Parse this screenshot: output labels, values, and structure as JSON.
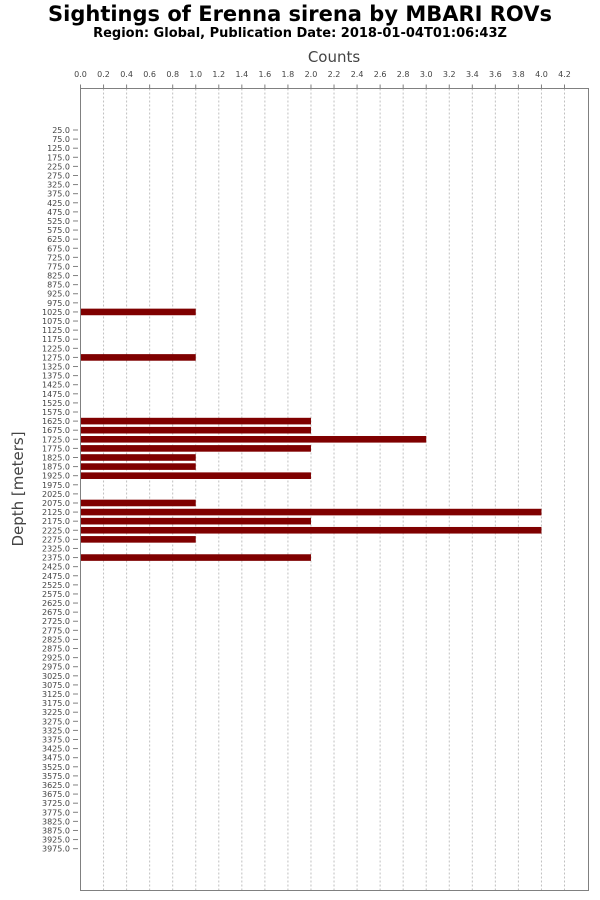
{
  "chart_data": {
    "type": "bar",
    "orientation": "horizontal",
    "title": "Sightings of Erenna sirena by MBARI ROVs",
    "subtitle": "Region: Global, Publication Date: 2018-01-04T01:06:43Z",
    "xlabel": "Counts",
    "ylabel": "Depth [meters]",
    "xlim": [
      0,
      4.2
    ],
    "x_ticks": [
      "0.0",
      "0.2",
      "0.4",
      "0.6",
      "0.8",
      "1.0",
      "1.2",
      "1.4",
      "1.6",
      "1.8",
      "2.0",
      "2.2",
      "2.4",
      "2.6",
      "2.8",
      "3.0",
      "3.2",
      "3.4",
      "3.6",
      "3.8",
      "4.0",
      "4.2"
    ],
    "grid": true,
    "x_axis_position": "top",
    "bar_color": "#7f0000",
    "categories": [
      "25.0",
      "75.0",
      "125.0",
      "175.0",
      "225.0",
      "275.0",
      "325.0",
      "375.0",
      "425.0",
      "475.0",
      "525.0",
      "575.0",
      "625.0",
      "675.0",
      "725.0",
      "775.0",
      "825.0",
      "875.0",
      "925.0",
      "975.0",
      "1025.0",
      "1075.0",
      "1125.0",
      "1175.0",
      "1225.0",
      "1275.0",
      "1325.0",
      "1375.0",
      "1425.0",
      "1475.0",
      "1525.0",
      "1575.0",
      "1625.0",
      "1675.0",
      "1725.0",
      "1775.0",
      "1825.0",
      "1875.0",
      "1925.0",
      "1975.0",
      "2025.0",
      "2075.0",
      "2125.0",
      "2175.0",
      "2225.0",
      "2275.0",
      "2325.0",
      "2375.0",
      "2425.0",
      "2475.0",
      "2525.0",
      "2575.0",
      "2625.0",
      "2675.0",
      "2725.0",
      "2775.0",
      "2825.0",
      "2875.0",
      "2925.0",
      "2975.0",
      "3025.0",
      "3075.0",
      "3125.0",
      "3175.0",
      "3225.0",
      "3275.0",
      "3325.0",
      "3375.0",
      "3425.0",
      "3475.0",
      "3525.0",
      "3575.0",
      "3625.0",
      "3675.0",
      "3725.0",
      "3775.0",
      "3825.0",
      "3875.0",
      "3925.0",
      "3975.0"
    ],
    "values": [
      0,
      0,
      0,
      0,
      0,
      0,
      0,
      0,
      0,
      0,
      0,
      0,
      0,
      0,
      0,
      0,
      0,
      0,
      0,
      0,
      1,
      0,
      0,
      0,
      0,
      1,
      0,
      0,
      0,
      0,
      0,
      0,
      2,
      2,
      3,
      2,
      1,
      1,
      2,
      0,
      0,
      1,
      4,
      2,
      4,
      1,
      0,
      2,
      0,
      0,
      0,
      0,
      0,
      0,
      0,
      0,
      0,
      0,
      0,
      0,
      0,
      0,
      0,
      0,
      0,
      0,
      0,
      0,
      0,
      0,
      0,
      0,
      0,
      0,
      0,
      0,
      0,
      0,
      0,
      0
    ]
  }
}
